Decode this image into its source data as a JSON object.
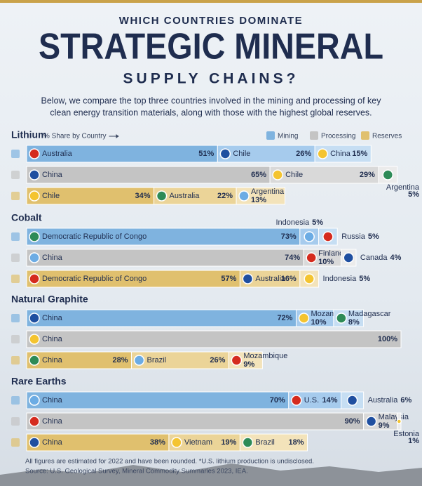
{
  "header": {
    "kicker": "WHICH COUNTRIES DOMINATE",
    "title": "STRATEGIC MINERAL",
    "subtitle": "SUPPLY CHAINS?",
    "description": [
      "Below, we compare the top three countries involved in the mining and processing of key",
      "clean energy transition materials, along with those with the highest global reserves."
    ]
  },
  "share_label": "% Share by Country",
  "legend": [
    "Mining",
    "Processing",
    "Reserves"
  ],
  "row_colors": [
    [
      "#7fb3df",
      "#a6cbed",
      "#c6def3"
    ],
    [
      "#c4c4c4",
      "#d9d9d9",
      "#ebebeb"
    ],
    [
      "#e0c06e",
      "#ebd498",
      "#f3e3ba"
    ]
  ],
  "chart_data": [
    {
      "type": "bar",
      "orientation": "horizontal",
      "stacked": true,
      "title": "Lithium",
      "xlim": [
        0,
        100
      ],
      "rows": [
        {
          "names": [
            "Australia",
            "Chile",
            "China"
          ],
          "values": [
            51,
            26,
            15
          ],
          "value_labels": [
            "51%",
            "26%",
            "15%"
          ]
        },
        {
          "names": [
            "China",
            "Chile",
            "Argentina"
          ],
          "values": [
            65,
            29,
            5
          ],
          "value_labels": [
            "65%",
            "29%",
            "5%"
          ]
        },
        {
          "names": [
            "Chile",
            "Australia",
            "Argentina"
          ],
          "values": [
            34,
            22,
            13
          ],
          "value_labels": [
            "34%",
            "22%",
            "13%"
          ]
        }
      ]
    },
    {
      "type": "bar",
      "orientation": "horizontal",
      "stacked": true,
      "title": "Cobalt",
      "xlim": [
        0,
        100
      ],
      "rows": [
        {
          "names": [
            "Democratic Republic of Congo",
            "Indonesia",
            "Russia"
          ],
          "values": [
            73,
            5,
            5
          ],
          "value_labels": [
            "73%",
            "5%",
            "5%"
          ]
        },
        {
          "names": [
            "China",
            "Finland",
            "Canada"
          ],
          "values": [
            74,
            10,
            4
          ],
          "value_labels": [
            "74%",
            "10%",
            "4%"
          ]
        },
        {
          "names": [
            "Democratic Republic of Congo",
            "Australia",
            "Indonesia"
          ],
          "values": [
            57,
            16,
            5
          ],
          "value_labels": [
            "57%",
            "16%",
            "5%"
          ]
        }
      ]
    },
    {
      "type": "bar",
      "orientation": "horizontal",
      "stacked": true,
      "title": "Natural Graphite",
      "xlim": [
        0,
        100
      ],
      "rows": [
        {
          "names": [
            "China",
            "Mozambique",
            "Madagascar"
          ],
          "values": [
            72,
            10,
            8
          ],
          "value_labels": [
            "72%",
            "10%",
            "8%"
          ]
        },
        {
          "names": [
            "China"
          ],
          "values": [
            100
          ],
          "value_labels": [
            "100%"
          ]
        },
        {
          "names": [
            "China",
            "Brazil",
            "Mozambique"
          ],
          "values": [
            28,
            26,
            9
          ],
          "value_labels": [
            "28%",
            "26%",
            "9%"
          ]
        }
      ]
    },
    {
      "type": "bar",
      "orientation": "horizontal",
      "stacked": true,
      "title": "Rare Earths",
      "xlim": [
        0,
        100
      ],
      "rows": [
        {
          "names": [
            "China",
            "U.S.",
            "Australia"
          ],
          "values": [
            70,
            14,
            6
          ],
          "value_labels": [
            "70%",
            "14%",
            "6%"
          ]
        },
        {
          "names": [
            "China",
            "Malaysia",
            "Estonia"
          ],
          "values": [
            90,
            9,
            1
          ],
          "value_labels": [
            "90%",
            "9%",
            "1%"
          ]
        },
        {
          "names": [
            "China",
            "Vietnam",
            "Brazil"
          ],
          "values": [
            38,
            19,
            18
          ],
          "value_labels": [
            "38%",
            "19%",
            "18%"
          ]
        }
      ]
    }
  ],
  "footnote": [
    "All figures are estimated for 2022 and have been rounded. *U.S. lithium production is undisclosed.",
    "Source: U.S. Geological Survey, Mineral Commodity Summaries 2023, IEA."
  ]
}
